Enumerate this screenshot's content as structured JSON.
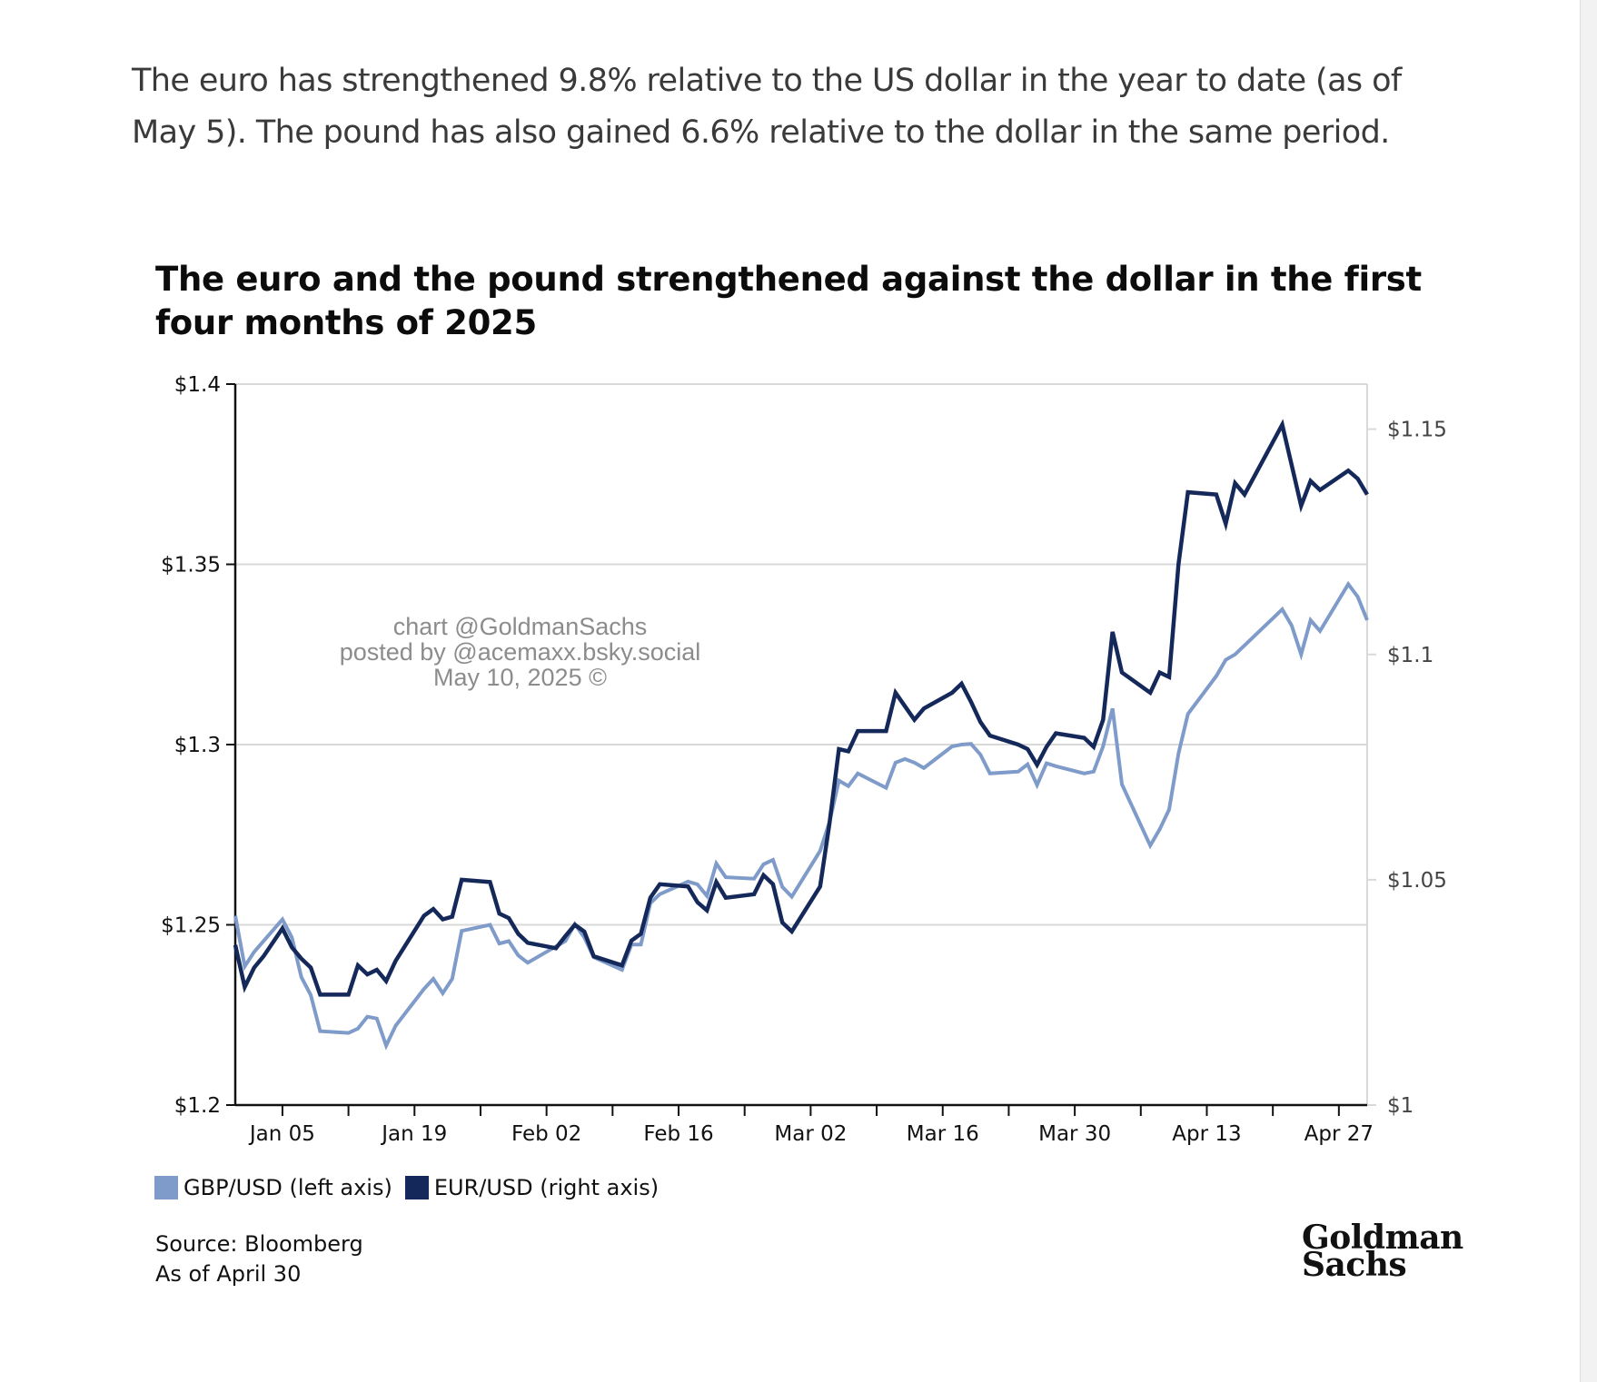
{
  "article": {
    "intro_text": "The euro has strengthened 9.8% relative to the US dollar in the year to date (as of May 5). The pound has also gained 6.6% relative to the dollar in the same period."
  },
  "watermark": {
    "line1": "chart @GoldmanSachs",
    "line2": "posted by @acemaxx.bsky.social",
    "line3": "May 10, 2025 ©"
  },
  "source": {
    "line1": "Source: Bloomberg",
    "line2": "As of April 30"
  },
  "logo": {
    "line1": "Goldman",
    "line2": "Sachs"
  },
  "colors": {
    "gbp": "#7f9bc9",
    "eur": "#14285a",
    "grid": "#d9d9d9",
    "axis": "#111111"
  },
  "chart_data": {
    "type": "line",
    "title": "The euro and the pound strengthened against the dollar in the first four months of 2025",
    "x_range": [
      "2024-12-31",
      "2025-04-30"
    ],
    "x_ticks": [
      {
        "date": "2025-01-05",
        "label": "Jan 05"
      },
      {
        "date": "2025-01-19",
        "label": "Jan 19"
      },
      {
        "date": "2025-02-02",
        "label": "Feb 02"
      },
      {
        "date": "2025-02-16",
        "label": "Feb 16"
      },
      {
        "date": "2025-03-02",
        "label": "Mar 02"
      },
      {
        "date": "2025-03-16",
        "label": "Mar 16"
      },
      {
        "date": "2025-03-30",
        "label": "Mar 30"
      },
      {
        "date": "2025-04-13",
        "label": "Apr 13"
      },
      {
        "date": "2025-04-27",
        "label": "Apr 27"
      }
    ],
    "x_minor_ticks": [
      "2025-01-12",
      "2025-01-26",
      "2025-02-09",
      "2025-02-23",
      "2025-03-09",
      "2025-03-23",
      "2025-04-06",
      "2025-04-20"
    ],
    "left_axis": {
      "ylim": [
        1.2,
        1.4
      ],
      "ticks": [
        1.2,
        1.25,
        1.3,
        1.35,
        1.4
      ],
      "tick_labels": [
        "$1.2",
        "$1.25",
        "$1.3",
        "$1.35",
        "$1.4"
      ]
    },
    "right_axis": {
      "ylim": [
        1.0,
        1.16
      ],
      "ticks": [
        1.0,
        1.05,
        1.1,
        1.15
      ],
      "tick_labels": [
        "$1",
        "$1.05",
        "$1.1",
        "$1.15"
      ]
    },
    "grid": true,
    "legend_position": "bottom-left",
    "series": [
      {
        "name": "GBP/USD (left axis)",
        "axis": "left",
        "color": "#7f9bc9",
        "points": [
          [
            "2024-12-31",
            1.2525
          ],
          [
            "2025-01-01",
            1.2385
          ],
          [
            "2025-01-02",
            1.2425
          ],
          [
            "2025-01-03",
            1.2455
          ],
          [
            "2025-01-05",
            1.2515
          ],
          [
            "2025-01-06",
            1.2465
          ],
          [
            "2025-01-07",
            1.2355
          ],
          [
            "2025-01-08",
            1.2305
          ],
          [
            "2025-01-09",
            1.2205
          ],
          [
            "2025-01-12",
            1.22
          ],
          [
            "2025-01-13",
            1.2212
          ],
          [
            "2025-01-14",
            1.2245
          ],
          [
            "2025-01-15",
            1.224
          ],
          [
            "2025-01-16",
            1.2165
          ],
          [
            "2025-01-17",
            1.222
          ],
          [
            "2025-01-20",
            1.2322
          ],
          [
            "2025-01-21",
            1.235
          ],
          [
            "2025-01-22",
            1.231
          ],
          [
            "2025-01-23",
            1.235
          ],
          [
            "2025-01-24",
            1.2483
          ],
          [
            "2025-01-27",
            1.25
          ],
          [
            "2025-01-28",
            1.2448
          ],
          [
            "2025-01-29",
            1.2455
          ],
          [
            "2025-01-30",
            1.2415
          ],
          [
            "2025-01-31",
            1.2395
          ],
          [
            "2025-02-03",
            1.244
          ],
          [
            "2025-02-04",
            1.2455
          ],
          [
            "2025-02-05",
            1.2502
          ],
          [
            "2025-02-06",
            1.2465
          ],
          [
            "2025-02-07",
            1.241
          ],
          [
            "2025-02-10",
            1.2375
          ],
          [
            "2025-02-11",
            1.2445
          ],
          [
            "2025-02-12",
            1.2445
          ],
          [
            "2025-02-13",
            1.256
          ],
          [
            "2025-02-14",
            1.2585
          ],
          [
            "2025-02-17",
            1.262
          ],
          [
            "2025-02-18",
            1.2612
          ],
          [
            "2025-02-19",
            1.258
          ],
          [
            "2025-02-20",
            1.267
          ],
          [
            "2025-02-21",
            1.2632
          ],
          [
            "2025-02-24",
            1.2628
          ],
          [
            "2025-02-25",
            1.2668
          ],
          [
            "2025-02-26",
            1.268
          ],
          [
            "2025-02-27",
            1.2605
          ],
          [
            "2025-02-28",
            1.2578
          ],
          [
            "2025-03-03",
            1.2705
          ],
          [
            "2025-03-04",
            1.2785
          ],
          [
            "2025-03-05",
            1.29
          ],
          [
            "2025-03-06",
            1.2885
          ],
          [
            "2025-03-07",
            1.292
          ],
          [
            "2025-03-10",
            1.288
          ],
          [
            "2025-03-11",
            1.295
          ],
          [
            "2025-03-12",
            1.296
          ],
          [
            "2025-03-13",
            1.295
          ],
          [
            "2025-03-14",
            1.2935
          ],
          [
            "2025-03-17",
            1.2995
          ],
          [
            "2025-03-18",
            1.3
          ],
          [
            "2025-03-19",
            1.3002
          ],
          [
            "2025-03-20",
            1.2972
          ],
          [
            "2025-03-21",
            1.292
          ],
          [
            "2025-03-24",
            1.2925
          ],
          [
            "2025-03-25",
            1.2945
          ],
          [
            "2025-03-26",
            1.2888
          ],
          [
            "2025-03-27",
            1.2948
          ],
          [
            "2025-03-28",
            1.294
          ],
          [
            "2025-03-31",
            1.292
          ],
          [
            "2025-04-01",
            1.2925
          ],
          [
            "2025-04-02",
            1.2995
          ],
          [
            "2025-04-03",
            1.31
          ],
          [
            "2025-04-04",
            1.289
          ],
          [
            "2025-04-07",
            1.272
          ],
          [
            "2025-04-08",
            1.2765
          ],
          [
            "2025-04-09",
            1.282
          ],
          [
            "2025-04-10",
            1.2975
          ],
          [
            "2025-04-11",
            1.3085
          ],
          [
            "2025-04-14",
            1.319
          ],
          [
            "2025-04-15",
            1.3235
          ],
          [
            "2025-04-16",
            1.325
          ],
          [
            "2025-04-17",
            1.3275
          ],
          [
            "2025-04-21",
            1.3375
          ],
          [
            "2025-04-22",
            1.333
          ],
          [
            "2025-04-23",
            1.325
          ],
          [
            "2025-04-24",
            1.3345
          ],
          [
            "2025-04-25",
            1.3315
          ],
          [
            "2025-04-28",
            1.3445
          ],
          [
            "2025-04-29",
            1.341
          ],
          [
            "2025-04-30",
            1.3345
          ]
        ]
      },
      {
        "name": "EUR/USD (right axis)",
        "axis": "right",
        "color": "#14285a",
        "points": [
          [
            "2024-12-31",
            1.0355
          ],
          [
            "2025-01-01",
            1.0262
          ],
          [
            "2025-01-02",
            1.0305
          ],
          [
            "2025-01-03",
            1.033
          ],
          [
            "2025-01-05",
            1.0392
          ],
          [
            "2025-01-06",
            1.035
          ],
          [
            "2025-01-07",
            1.0325
          ],
          [
            "2025-01-08",
            1.0305
          ],
          [
            "2025-01-09",
            1.0245
          ],
          [
            "2025-01-12",
            1.0245
          ],
          [
            "2025-01-13",
            1.031
          ],
          [
            "2025-01-14",
            1.029
          ],
          [
            "2025-01-15",
            1.03
          ],
          [
            "2025-01-16",
            1.0275
          ],
          [
            "2025-01-17",
            1.032
          ],
          [
            "2025-01-20",
            1.042
          ],
          [
            "2025-01-21",
            1.0435
          ],
          [
            "2025-01-22",
            1.0412
          ],
          [
            "2025-01-23",
            1.0418
          ],
          [
            "2025-01-24",
            1.05
          ],
          [
            "2025-01-27",
            1.0495
          ],
          [
            "2025-01-28",
            1.0425
          ],
          [
            "2025-01-29",
            1.0415
          ],
          [
            "2025-01-30",
            1.038
          ],
          [
            "2025-01-31",
            1.036
          ],
          [
            "2025-02-03",
            1.0348
          ],
          [
            "2025-02-04",
            1.0375
          ],
          [
            "2025-02-05",
            1.04
          ],
          [
            "2025-02-06",
            1.0385
          ],
          [
            "2025-02-07",
            1.033
          ],
          [
            "2025-02-10",
            1.031
          ],
          [
            "2025-02-11",
            1.0365
          ],
          [
            "2025-02-12",
            1.038
          ],
          [
            "2025-02-13",
            1.046
          ],
          [
            "2025-02-14",
            1.049
          ],
          [
            "2025-02-17",
            1.0485
          ],
          [
            "2025-02-18",
            1.045
          ],
          [
            "2025-02-19",
            1.0432
          ],
          [
            "2025-02-20",
            1.0495
          ],
          [
            "2025-02-21",
            1.046
          ],
          [
            "2025-02-24",
            1.0468
          ],
          [
            "2025-02-25",
            1.051
          ],
          [
            "2025-02-26",
            1.049
          ],
          [
            "2025-02-27",
            1.0405
          ],
          [
            "2025-02-28",
            1.0385
          ],
          [
            "2025-03-03",
            1.0485
          ],
          [
            "2025-03-04",
            1.0625
          ],
          [
            "2025-03-05",
            1.079
          ],
          [
            "2025-03-06",
            1.0785
          ],
          [
            "2025-03-07",
            1.083
          ],
          [
            "2025-03-10",
            1.083
          ],
          [
            "2025-03-11",
            1.0915
          ],
          [
            "2025-03-12",
            1.0885
          ],
          [
            "2025-03-13",
            1.0855
          ],
          [
            "2025-03-14",
            1.088
          ],
          [
            "2025-03-17",
            1.0915
          ],
          [
            "2025-03-18",
            1.0935
          ],
          [
            "2025-03-19",
            1.0895
          ],
          [
            "2025-03-20",
            1.085
          ],
          [
            "2025-03-21",
            1.082
          ],
          [
            "2025-03-24",
            1.08
          ],
          [
            "2025-03-25",
            1.079
          ],
          [
            "2025-03-26",
            1.0755
          ],
          [
            "2025-03-27",
            1.0795
          ],
          [
            "2025-03-28",
            1.0825
          ],
          [
            "2025-03-31",
            1.0815
          ],
          [
            "2025-04-01",
            1.0795
          ],
          [
            "2025-04-02",
            1.0855
          ],
          [
            "2025-04-03",
            1.105
          ],
          [
            "2025-04-04",
            1.096
          ],
          [
            "2025-04-07",
            1.0915
          ],
          [
            "2025-04-08",
            1.096
          ],
          [
            "2025-04-09",
            1.095
          ],
          [
            "2025-04-10",
            1.12
          ],
          [
            "2025-04-11",
            1.136
          ],
          [
            "2025-04-14",
            1.1355
          ],
          [
            "2025-04-15",
            1.129
          ],
          [
            "2025-04-16",
            1.138
          ],
          [
            "2025-04-17",
            1.1355
          ],
          [
            "2025-04-21",
            1.151
          ],
          [
            "2025-04-22",
            1.142
          ],
          [
            "2025-04-23",
            1.133
          ],
          [
            "2025-04-24",
            1.1385
          ],
          [
            "2025-04-25",
            1.1365
          ],
          [
            "2025-04-28",
            1.1408
          ],
          [
            "2025-04-29",
            1.139
          ],
          [
            "2025-04-30",
            1.1355
          ]
        ]
      }
    ]
  }
}
